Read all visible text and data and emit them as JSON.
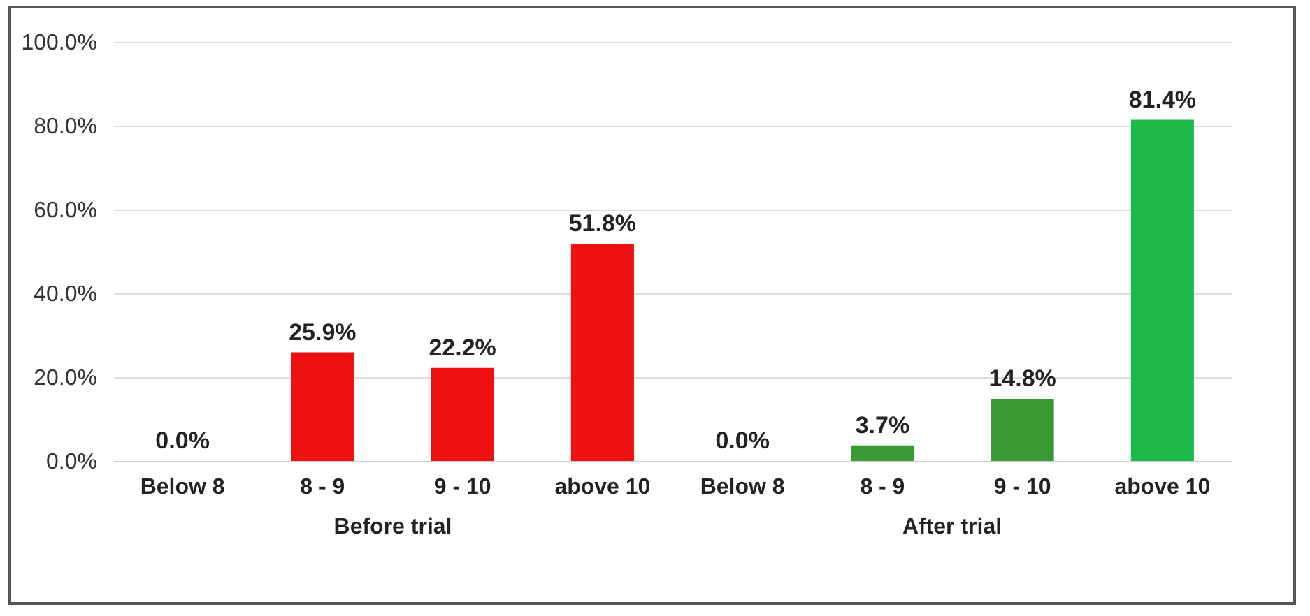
{
  "chart_data": {
    "type": "bar",
    "categories": [
      "Below 8",
      "8 - 9",
      "9 - 10",
      "above 10",
      "Below 8",
      "8 - 9",
      "9 - 10",
      "above 10"
    ],
    "series": [
      {
        "name": "Before trial",
        "colors": [
          "#ee1111",
          "#ee1111",
          "#ee1111",
          "#ee1111",
          null,
          null,
          null,
          null
        ],
        "values": [
          0.0,
          25.9,
          22.2,
          51.8,
          null,
          null,
          null,
          null
        ],
        "value_labels": [
          "0.0%",
          "25.9%",
          "22.2%",
          "51.8%",
          null,
          null,
          null,
          null
        ]
      },
      {
        "name": "After trial",
        "colors": [
          null,
          null,
          null,
          null,
          "#2eaa3c",
          "#3a9a35",
          "#3a9a35",
          "#1fb84a"
        ],
        "values": [
          null,
          null,
          null,
          null,
          0.0,
          3.7,
          14.8,
          81.4
        ],
        "value_labels": [
          null,
          null,
          null,
          null,
          "0.0%",
          "3.7%",
          "14.8%",
          "81.4%"
        ]
      }
    ],
    "ylim": [
      0,
      100
    ],
    "yticks": [
      {
        "value": 0,
        "label": "0.0%"
      },
      {
        "value": 20,
        "label": "20.0%"
      },
      {
        "value": 40,
        "label": "40.0%"
      },
      {
        "value": 60,
        "label": "60.0%"
      },
      {
        "value": 80,
        "label": "80.0%"
      },
      {
        "value": 100,
        "label": "100.0%"
      }
    ],
    "grid": "y"
  }
}
